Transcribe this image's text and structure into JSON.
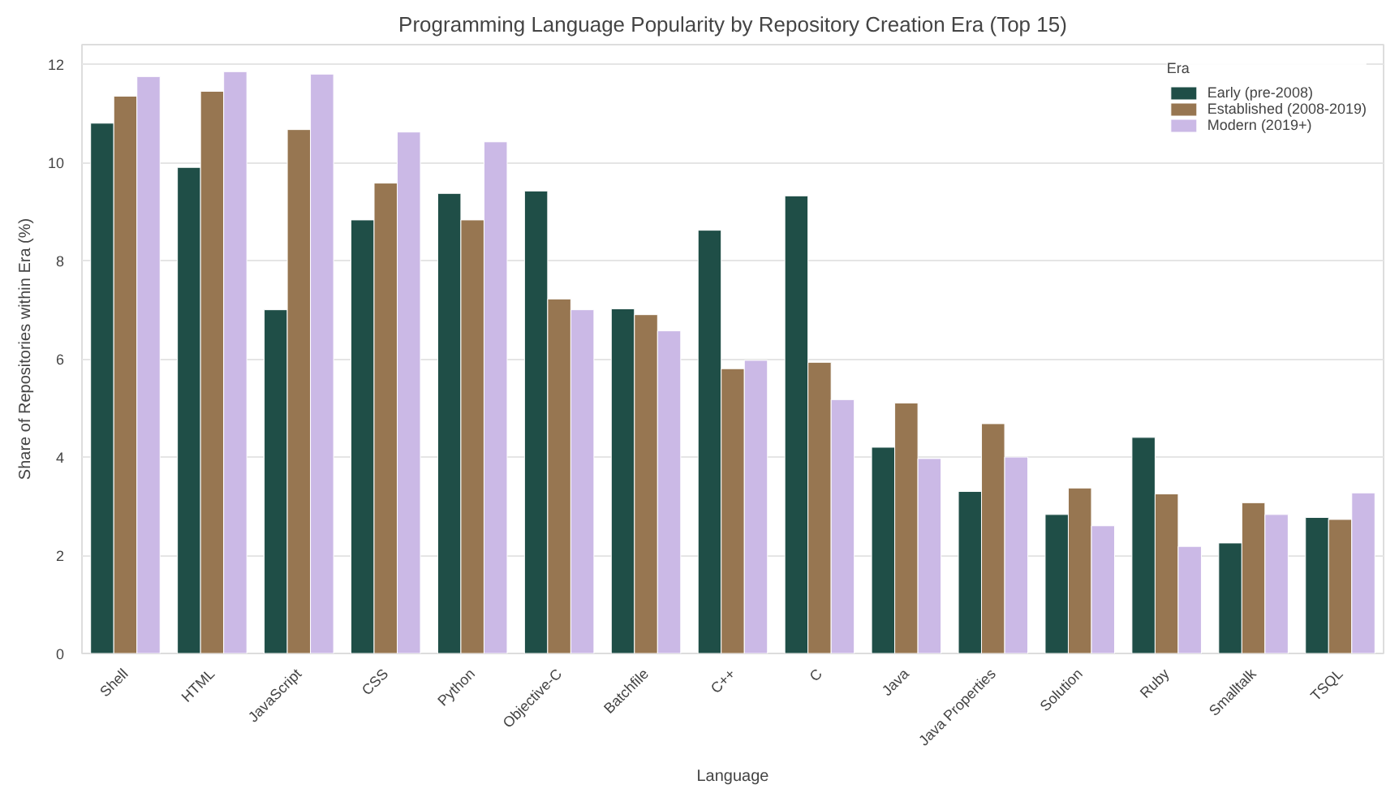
{
  "chart_data": {
    "type": "bar",
    "title": "Programming Language Popularity by Repository Creation Era (Top 15)",
    "xlabel": "Language",
    "ylabel": "Share of Repositories within Era (%)",
    "legend_title": "Era",
    "categories": [
      "Shell",
      "HTML",
      "JavaScript",
      "CSS",
      "Python",
      "Objective-C",
      "Batchfile",
      "C++",
      "C",
      "Java",
      "Java Properties",
      "Solution",
      "Ruby",
      "Smalltalk",
      "TSQL"
    ],
    "series": [
      {
        "name": "Early (pre-2008)",
        "color": "#1f4e47",
        "values": [
          10.8,
          9.9,
          7.0,
          8.83,
          9.37,
          9.42,
          7.02,
          8.62,
          9.32,
          4.2,
          3.3,
          2.83,
          4.4,
          2.25,
          2.77
        ]
      },
      {
        "name": "Established (2008-2019)",
        "color": "#977651",
        "values": [
          11.35,
          11.45,
          10.67,
          9.58,
          8.83,
          7.22,
          6.9,
          5.8,
          5.93,
          5.1,
          4.68,
          3.37,
          3.25,
          3.07,
          2.73
        ]
      },
      {
        "name": "Modern (2019+)",
        "color": "#cbb9e6",
        "values": [
          11.75,
          11.85,
          11.8,
          10.62,
          10.42,
          7.0,
          6.57,
          5.97,
          5.17,
          3.97,
          4.0,
          2.6,
          2.18,
          2.83,
          3.27
        ]
      }
    ],
    "ylim": [
      0,
      12.4
    ],
    "yticks": [
      0,
      2,
      4,
      6,
      8,
      10,
      12
    ],
    "grid": "y",
    "legend": "top right"
  }
}
